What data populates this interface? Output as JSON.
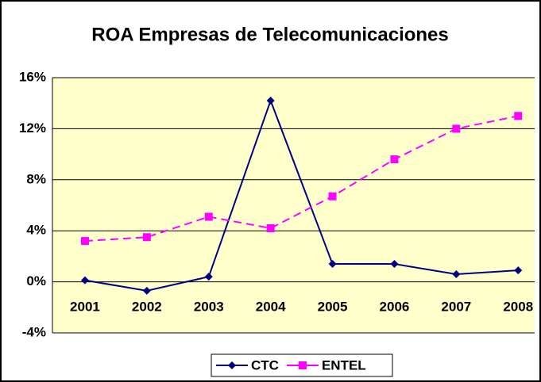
{
  "chart_data": {
    "type": "line",
    "title": "ROA Empresas de Telecomunicaciones",
    "categories": [
      "2001",
      "2002",
      "2003",
      "2004",
      "2005",
      "2006",
      "2007",
      "2008"
    ],
    "series": [
      {
        "name": "CTC",
        "color": "#000080",
        "values": [
          0.12,
          -0.7,
          0.4,
          14.2,
          1.4,
          1.4,
          0.6,
          0.9
        ]
      },
      {
        "name": "ENTEL",
        "color": "#ff00ff",
        "values": [
          3.2,
          3.5,
          5.1,
          4.2,
          6.7,
          9.6,
          12.0,
          13.0
        ]
      }
    ],
    "ylim": [
      -4,
      16
    ],
    "yticks": [
      {
        "value": -4,
        "label": "-4%"
      },
      {
        "value": 0,
        "label": "0%"
      },
      {
        "value": 4,
        "label": "4%"
      },
      {
        "value": 8,
        "label": "8%"
      },
      {
        "value": 12,
        "label": "12%"
      },
      {
        "value": 16,
        "label": "16%"
      }
    ],
    "grid": true,
    "legend": "bottom"
  }
}
